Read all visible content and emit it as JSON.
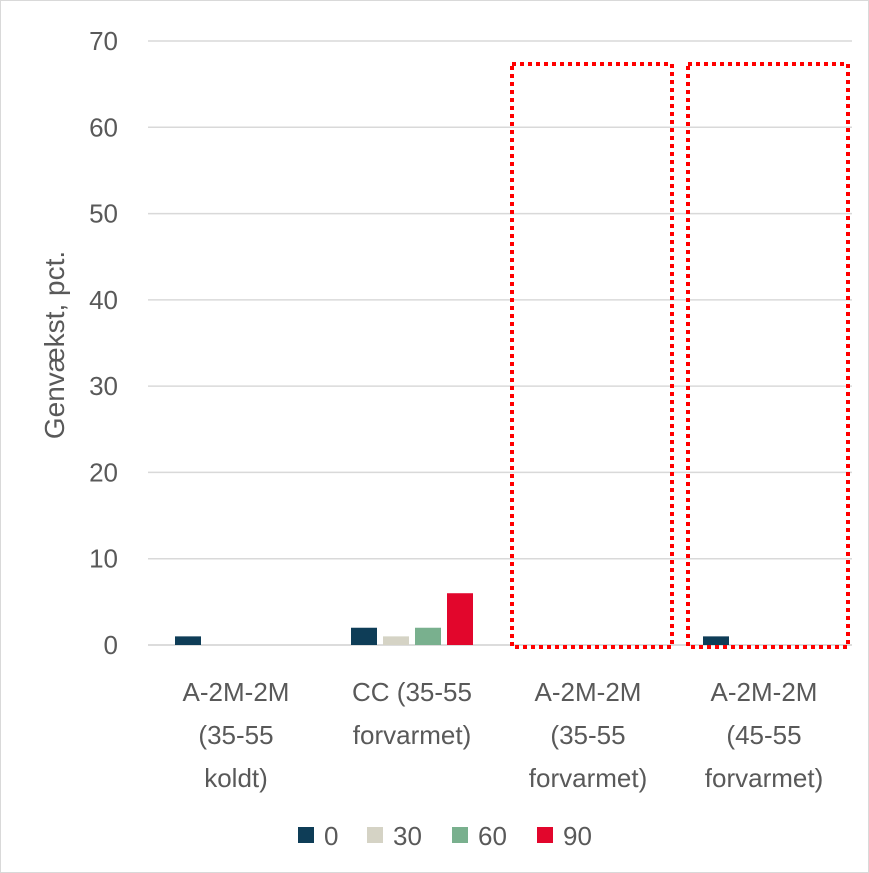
{
  "chart_data": {
    "type": "bar",
    "title": "",
    "xlabel": "",
    "ylabel": "Genvækst,  pct.",
    "ylim": [
      0,
      70
    ],
    "yticks": [
      0,
      10,
      20,
      30,
      40,
      50,
      60,
      70
    ],
    "grid": true,
    "legend": "bottom",
    "categories": [
      [
        "A-2M-2M",
        "(35-55",
        "koldt)"
      ],
      [
        "CC (35-55",
        "forvarmet)"
      ],
      [
        "A-2M-2M",
        "(35-55",
        "forvarmet)"
      ],
      [
        "A-2M-2M",
        "(45-55",
        "forvarmet)"
      ]
    ],
    "series": [
      {
        "name": "0",
        "color": "#0e3d57",
        "values": [
          1,
          2,
          0,
          1
        ]
      },
      {
        "name": "30",
        "color": "#d5d3c5",
        "values": [
          0,
          1,
          0,
          0
        ]
      },
      {
        "name": "60",
        "color": "#79b08e",
        "values": [
          0,
          2,
          0,
          0
        ]
      },
      {
        "name": "90",
        "color": "#e2062c",
        "values": [
          0,
          6,
          0,
          0
        ]
      }
    ],
    "highlighted_categories": [
      2,
      3
    ],
    "highlight_color": "#ff0000"
  }
}
